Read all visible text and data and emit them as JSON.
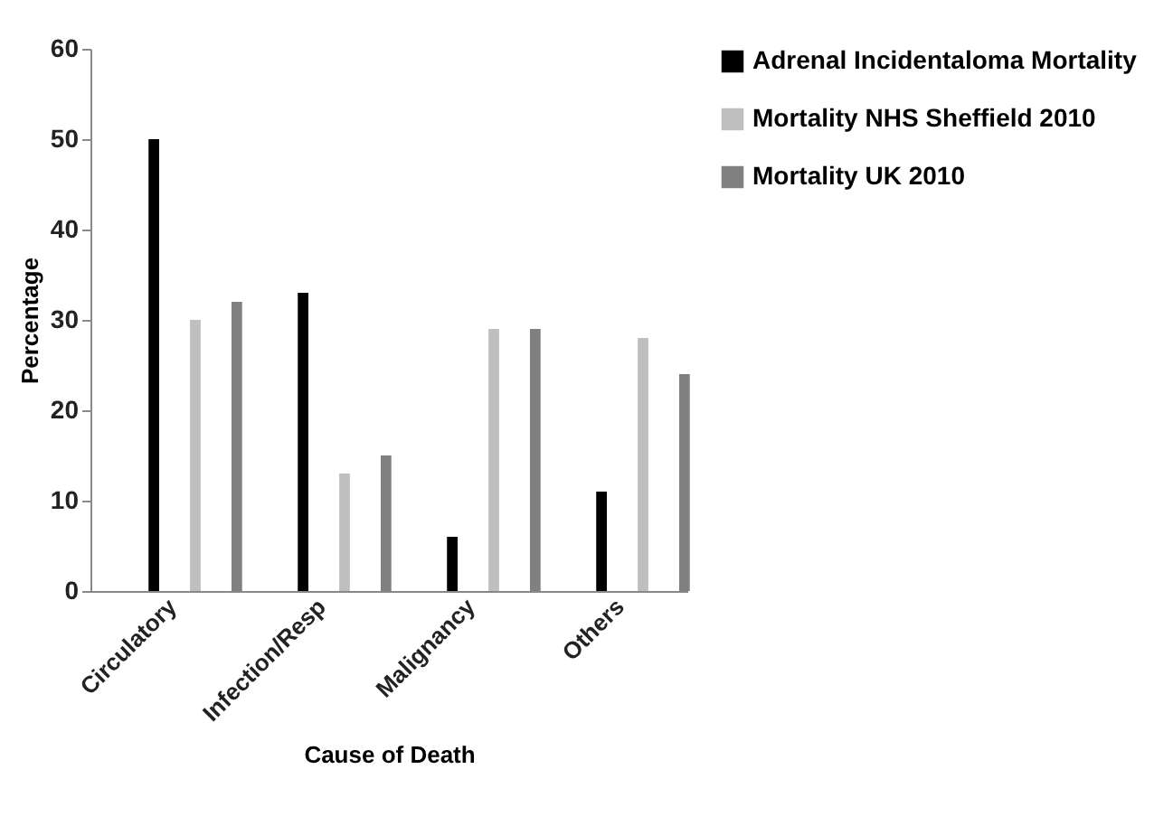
{
  "chart_data": {
    "type": "bar",
    "xlabel": "Cause of Death",
    "ylabel": "Percentage",
    "categories": [
      "Circulatory",
      "Infection/Resp",
      "Malignancy",
      "Others"
    ],
    "series": [
      {
        "name": "Adrenal Incidentaloma Mortality",
        "color": "#000000",
        "values": [
          50,
          33,
          6,
          11
        ]
      },
      {
        "name": "Mortality NHS Sheffield 2010",
        "color": "#bfbfbf",
        "values": [
          30,
          13,
          29,
          28
        ]
      },
      {
        "name": "Mortality UK 2010",
        "color": "#808080",
        "values": [
          32,
          15,
          29,
          24
        ]
      }
    ],
    "ylim": [
      0,
      60
    ],
    "yticks": [
      0,
      10,
      20,
      30,
      40,
      50,
      60
    ],
    "grid": false,
    "legend": "right"
  }
}
